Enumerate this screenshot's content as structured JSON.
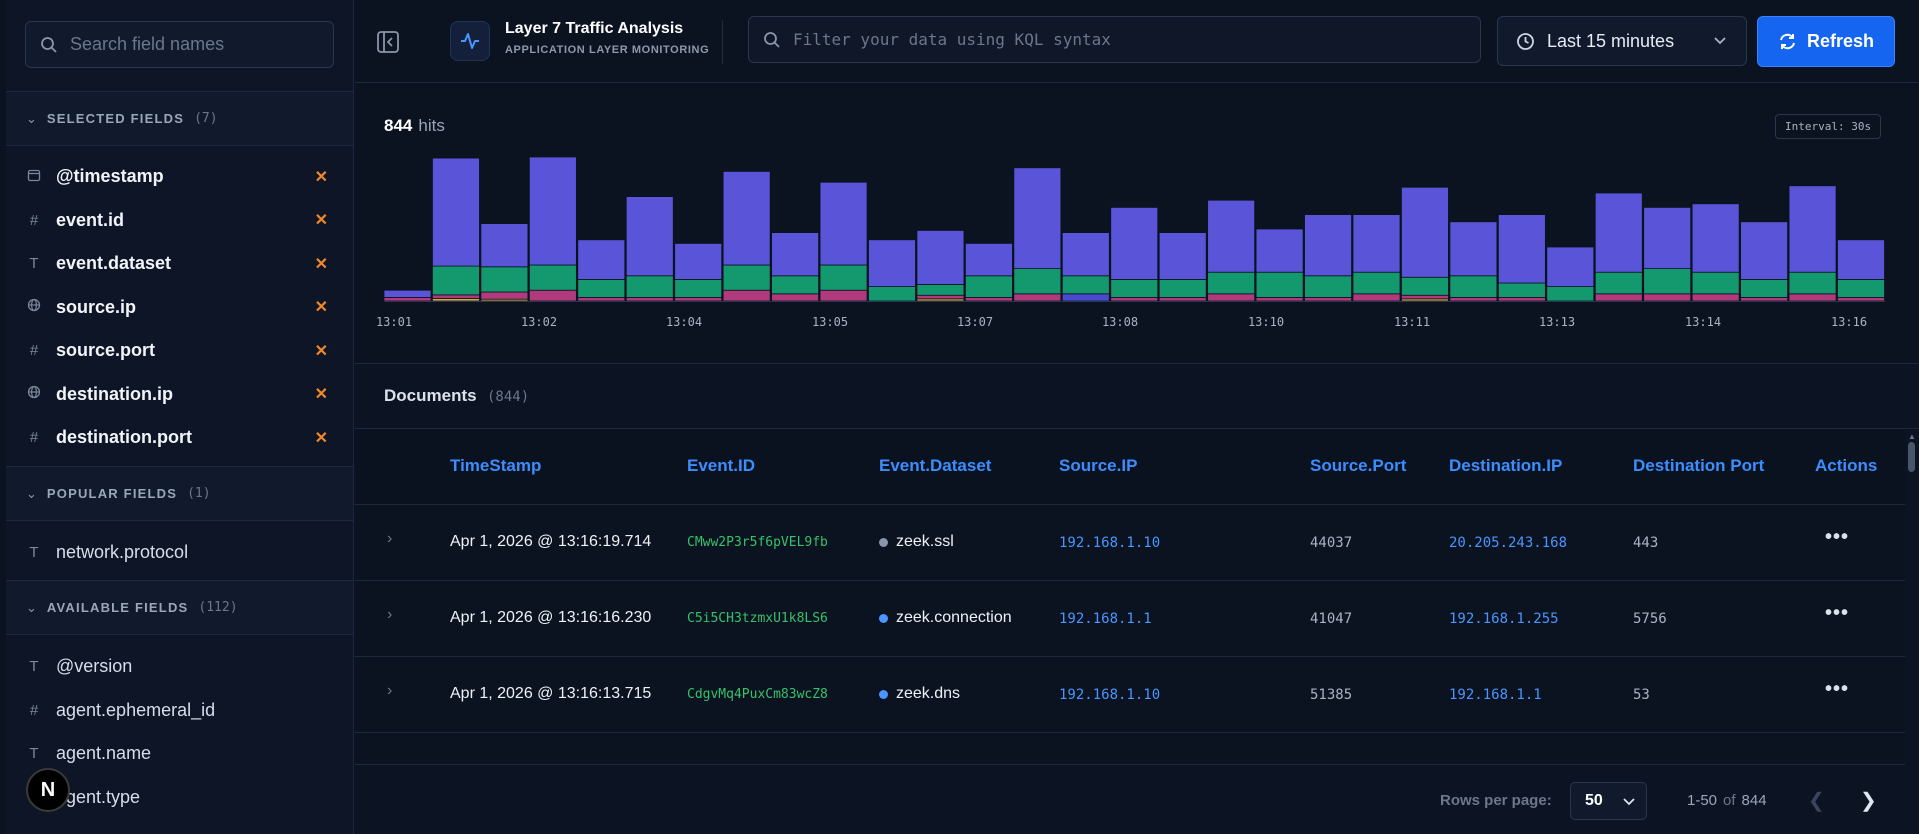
{
  "sidebar": {
    "search_placeholder": "Search field names",
    "selected": {
      "title": "SELECTED FIELDS",
      "count": "(7)",
      "fields": [
        {
          "name": "@timestamp",
          "type": "date"
        },
        {
          "name": "event.id",
          "type": "number"
        },
        {
          "name": "event.dataset",
          "type": "text"
        },
        {
          "name": "source.ip",
          "type": "ip"
        },
        {
          "name": "source.port",
          "type": "number"
        },
        {
          "name": "destination.ip",
          "type": "ip"
        },
        {
          "name": "destination.port",
          "type": "number"
        }
      ]
    },
    "popular": {
      "title": "POPULAR FIELDS",
      "count": "(1)",
      "fields": [
        {
          "name": "network.protocol",
          "type": "text"
        }
      ]
    },
    "available": {
      "title": "AVAILABLE FIELDS",
      "count": "(112)",
      "fields": [
        {
          "name": "@version",
          "type": "text"
        },
        {
          "name": "agent.ephemeral_id",
          "type": "number"
        },
        {
          "name": "agent.name",
          "type": "text"
        },
        {
          "name": "agent.type",
          "type": "text"
        }
      ]
    },
    "badge": "N"
  },
  "header": {
    "app_title": "Layer 7 Traffic Analysis",
    "app_subtitle": "APPLICATION LAYER MONITORING",
    "kql_placeholder": "Filter your data using KQL syntax",
    "time_range": "Last 15 minutes",
    "refresh_label": "Refresh"
  },
  "histogram": {
    "hits": "844",
    "hits_label": "hits",
    "interval": "Interval: 30s",
    "x_ticks": [
      "13:01",
      "13:02",
      "13:04",
      "13:05",
      "13:07",
      "13:08",
      "13:10",
      "13:11",
      "13:13",
      "13:14",
      "13:16"
    ],
    "colors": {
      "purple": "#5a55d8",
      "green": "#14996e",
      "pink": "#b03a7c",
      "yellow": "#d9a93a",
      "blue": "#4a4ad0"
    },
    "bars": [
      [
        2,
        0,
        1,
        0,
        0
      ],
      [
        30,
        8,
        1,
        0.7,
        0
      ],
      [
        12,
        7,
        2,
        0.5,
        0
      ],
      [
        30,
        7,
        3,
        0,
        0
      ],
      [
        11,
        5,
        1,
        0,
        0
      ],
      [
        22,
        6,
        1,
        0,
        0
      ],
      [
        10,
        5,
        1,
        0,
        0
      ],
      [
        26,
        7,
        3,
        0,
        0
      ],
      [
        12,
        5,
        2,
        0,
        0
      ],
      [
        23,
        7,
        3,
        0,
        0
      ],
      [
        13,
        4,
        0,
        0,
        0
      ],
      [
        15,
        3,
        1,
        0.6,
        0
      ],
      [
        9,
        6,
        1,
        0,
        0
      ],
      [
        28,
        7,
        2,
        0,
        0
      ],
      [
        12,
        5,
        0,
        0,
        2
      ],
      [
        20,
        5,
        1,
        0,
        0
      ],
      [
        13,
        5,
        1,
        0,
        0
      ],
      [
        20,
        6,
        2,
        0,
        0
      ],
      [
        12,
        7,
        1,
        0,
        0
      ],
      [
        17,
        6,
        1,
        0,
        0
      ],
      [
        16,
        6,
        2,
        0,
        0
      ],
      [
        25,
        5,
        1,
        0.6,
        0
      ],
      [
        15,
        6,
        1,
        0,
        0
      ],
      [
        19,
        4,
        1,
        0,
        0
      ],
      [
        11,
        4,
        0,
        0,
        0
      ],
      [
        22,
        6,
        2,
        0,
        0
      ],
      [
        17,
        7,
        2,
        0,
        0
      ],
      [
        19,
        6,
        2,
        0,
        0
      ],
      [
        16,
        5,
        1,
        0,
        0
      ],
      [
        24,
        6,
        2,
        0,
        0
      ],
      [
        11,
        5,
        1,
        0,
        0
      ]
    ]
  },
  "documents": {
    "title": "Documents",
    "count": "(844)",
    "columns": [
      "TimeStamp",
      "Event.ID",
      "Event.Dataset",
      "Source.IP",
      "Source.Port",
      "Destination.IP",
      "Destination Port",
      "Actions"
    ],
    "rows": [
      {
        "ts": "Apr 1, 2026 @ 13:16:19.714",
        "eid": "CMww2P3r5f6pVEL9fb",
        "ds": "zeek.ssl",
        "ds_color": "#8a96ab",
        "sip": "192.168.1.10",
        "sport": "44037",
        "dip": "20.205.243.168",
        "dport": "443"
      },
      {
        "ts": "Apr 1, 2026 @ 13:16:16.230",
        "eid": "C5i5CH3tzmxU1k8LS6",
        "ds": "zeek.connection",
        "ds_color": "#4a95ff",
        "sip": "192.168.1.1",
        "sport": "41047",
        "dip": "192.168.1.255",
        "dport": "5756"
      },
      {
        "ts": "Apr 1, 2026 @ 13:16:13.715",
        "eid": "CdgvMq4PuxCm83wcZ8",
        "ds": "zeek.dns",
        "ds_color": "#4a95ff",
        "sip": "192.168.1.10",
        "sport": "51385",
        "dip": "192.168.1.1",
        "dport": "53"
      }
    ],
    "actions_glyph": "•••"
  },
  "footer": {
    "rows_per_page_label": "Rows per page:",
    "rows_per_page": "50",
    "range": "1-50",
    "of": "of",
    "total": "844"
  }
}
